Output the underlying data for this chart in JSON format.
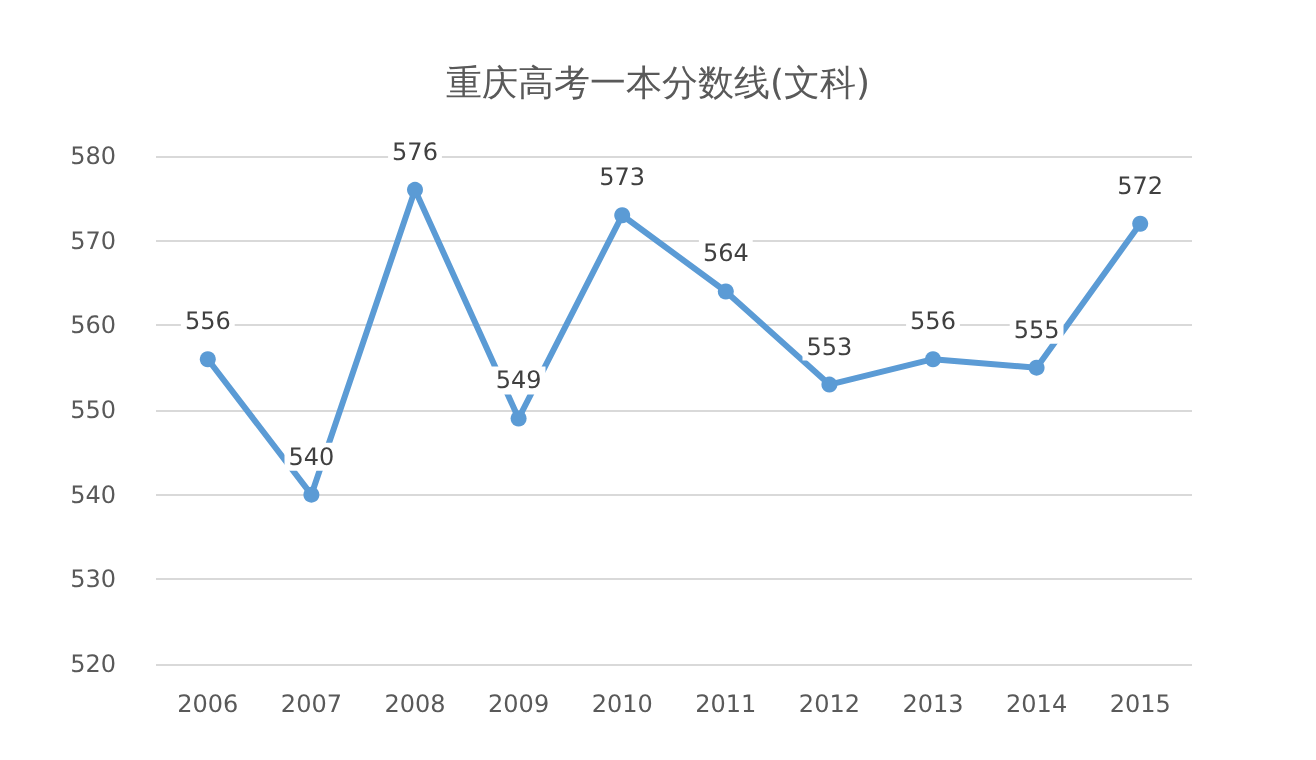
{
  "chart_data": {
    "type": "line",
    "title": "重庆高考一本分数线(文科)",
    "categories": [
      "2006",
      "2007",
      "2008",
      "2009",
      "2010",
      "2011",
      "2012",
      "2013",
      "2014",
      "2015"
    ],
    "series": [
      {
        "color": "#5b9bd5",
        "values": [
          556,
          540,
          576,
          549,
          573,
          564,
          553,
          556,
          555,
          572
        ]
      }
    ],
    "ylim": [
      520,
      580
    ],
    "yticks": [
      520,
      530,
      540,
      550,
      560,
      570,
      580
    ],
    "grid": "y",
    "marker": "circle",
    "line_style": "solid",
    "data_labels": true
  }
}
